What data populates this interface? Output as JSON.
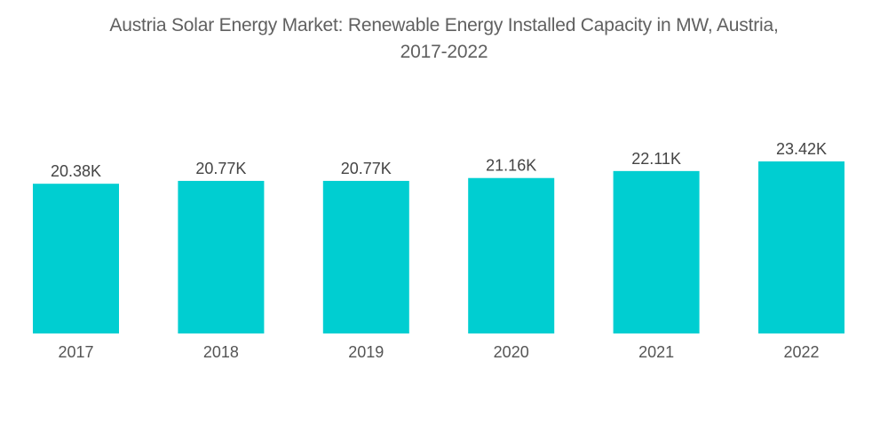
{
  "chart_data": {
    "type": "bar",
    "title": "Austria Solar Energy Market: Renewable Energy Installed Capacity in MW, Austria, 2017-2022",
    "title_lines": [
      "Austria Solar Energy Market: Renewable Energy Installed Capacity in MW, Austria,",
      "2017-2022"
    ],
    "categories": [
      "2017",
      "2018",
      "2019",
      "2020",
      "2021",
      "2022"
    ],
    "values": [
      20.38,
      20.77,
      20.77,
      21.16,
      22.11,
      23.42
    ],
    "data_labels": [
      "20.38K",
      "20.77K",
      "20.77K",
      "21.16K",
      "22.11K",
      "23.42K"
    ],
    "unit": "K MW",
    "xlabel": "",
    "ylabel": "",
    "ylim": [
      0,
      23.42
    ],
    "grid": false,
    "legend": "none",
    "bar_color": "#00CED1"
  }
}
